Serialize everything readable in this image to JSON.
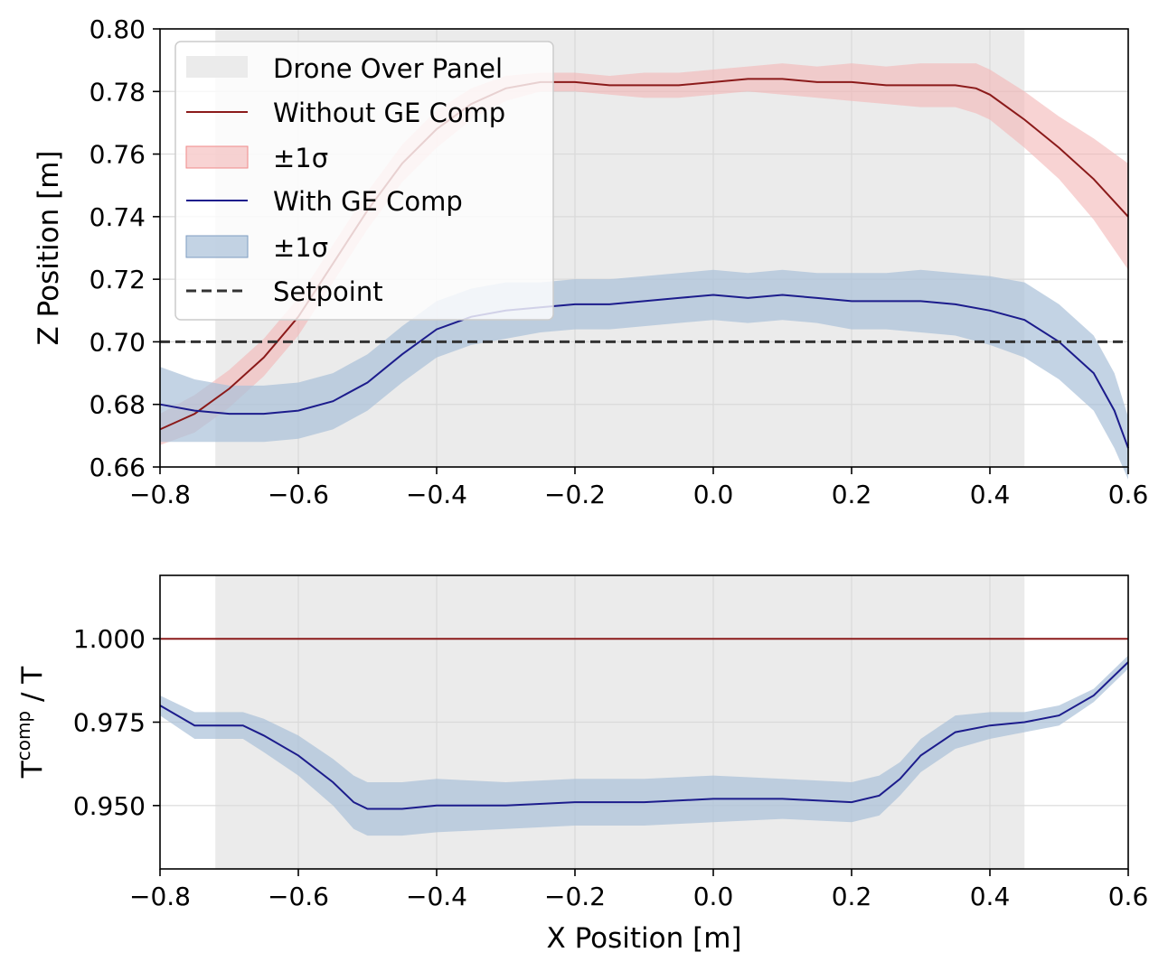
{
  "colors": {
    "panel_region": "#ebebeb",
    "without_line": "#8b1a1a",
    "without_band": "#f4b6b6",
    "with_line": "#1c1c8c",
    "with_band": "#a9c1d9",
    "setpoint": "#333333",
    "grid": "#d9d9d9"
  },
  "chart_data": [
    {
      "type": "line",
      "title": "",
      "xlabel": "",
      "ylabel": "Z Position [m]",
      "xlim": [
        -0.8,
        0.6
      ],
      "ylim": [
        0.66,
        0.8
      ],
      "xticks": [
        -0.8,
        -0.6,
        -0.4,
        -0.2,
        0.0,
        0.2,
        0.4,
        0.6
      ],
      "xtick_labels": [
        "−0.8",
        "−0.6",
        "−0.4",
        "−0.2",
        "0.0",
        "0.2",
        "0.4",
        "0.6"
      ],
      "yticks": [
        0.66,
        0.68,
        0.7,
        0.72,
        0.74,
        0.76,
        0.78,
        0.8
      ],
      "ytick_labels": [
        "0.66",
        "0.68",
        "0.70",
        "0.72",
        "0.74",
        "0.76",
        "0.78",
        "0.80"
      ],
      "grid": true,
      "legend_position": "top-left",
      "panel_region": {
        "label": "Drone Over Panel",
        "x_start": -0.72,
        "x_end": 0.45
      },
      "setpoint": {
        "label": "Setpoint",
        "y": 0.7
      },
      "series": [
        {
          "name": "Without GE Comp",
          "band_label": "±1σ",
          "x": [
            -0.8,
            -0.75,
            -0.7,
            -0.65,
            -0.6,
            -0.55,
            -0.5,
            -0.45,
            -0.4,
            -0.35,
            -0.3,
            -0.25,
            -0.2,
            -0.15,
            -0.1,
            -0.05,
            0.0,
            0.05,
            0.1,
            0.15,
            0.2,
            0.25,
            0.3,
            0.35,
            0.38,
            0.4,
            0.45,
            0.5,
            0.55,
            0.6
          ],
          "values": [
            0.672,
            0.677,
            0.685,
            0.695,
            0.708,
            0.725,
            0.742,
            0.757,
            0.768,
            0.776,
            0.781,
            0.783,
            0.783,
            0.782,
            0.782,
            0.782,
            0.783,
            0.784,
            0.784,
            0.783,
            0.783,
            0.782,
            0.782,
            0.782,
            0.781,
            0.779,
            0.771,
            0.762,
            0.752,
            0.74
          ],
          "std": [
            0.005,
            0.006,
            0.006,
            0.006,
            0.006,
            0.006,
            0.006,
            0.006,
            0.006,
            0.005,
            0.004,
            0.003,
            0.003,
            0.003,
            0.004,
            0.004,
            0.004,
            0.004,
            0.005,
            0.005,
            0.006,
            0.006,
            0.007,
            0.007,
            0.008,
            0.008,
            0.009,
            0.01,
            0.013,
            0.017
          ]
        },
        {
          "name": "With GE Comp",
          "band_label": "±1σ",
          "x": [
            -0.8,
            -0.75,
            -0.7,
            -0.65,
            -0.6,
            -0.55,
            -0.5,
            -0.45,
            -0.4,
            -0.35,
            -0.3,
            -0.25,
            -0.2,
            -0.15,
            -0.1,
            -0.05,
            0.0,
            0.05,
            0.1,
            0.15,
            0.2,
            0.25,
            0.3,
            0.35,
            0.4,
            0.45,
            0.5,
            0.55,
            0.58,
            0.6
          ],
          "values": [
            0.68,
            0.678,
            0.677,
            0.677,
            0.678,
            0.681,
            0.687,
            0.696,
            0.704,
            0.708,
            0.71,
            0.711,
            0.712,
            0.712,
            0.713,
            0.714,
            0.715,
            0.714,
            0.715,
            0.714,
            0.713,
            0.713,
            0.713,
            0.712,
            0.71,
            0.707,
            0.7,
            0.69,
            0.678,
            0.666
          ],
          "std": [
            0.012,
            0.01,
            0.009,
            0.009,
            0.009,
            0.009,
            0.009,
            0.009,
            0.009,
            0.009,
            0.009,
            0.008,
            0.008,
            0.008,
            0.008,
            0.008,
            0.008,
            0.008,
            0.008,
            0.008,
            0.009,
            0.009,
            0.01,
            0.01,
            0.011,
            0.012,
            0.012,
            0.012,
            0.012,
            0.01
          ]
        }
      ]
    },
    {
      "type": "line",
      "title": "",
      "xlabel": "X Position [m]",
      "ylabel_main": "T",
      "ylabel_superscript": "comp",
      "ylabel_tail": " / T",
      "xlim": [
        -0.8,
        0.6
      ],
      "ylim": [
        0.931,
        1.019
      ],
      "xticks": [
        -0.8,
        -0.6,
        -0.4,
        -0.2,
        0.0,
        0.2,
        0.4,
        0.6
      ],
      "xtick_labels": [
        "−0.8",
        "−0.6",
        "−0.4",
        "−0.2",
        "0.0",
        "0.2",
        "0.4",
        "0.6"
      ],
      "yticks": [
        0.95,
        0.975,
        1.0
      ],
      "ytick_labels": [
        "0.950",
        "0.975",
        "1.000"
      ],
      "grid": true,
      "panel_region": {
        "x_start": -0.72,
        "x_end": 0.45
      },
      "series": [
        {
          "name": "Without GE Comp",
          "x": [
            -0.8,
            0.6
          ],
          "values": [
            1.0,
            1.0
          ]
        },
        {
          "name": "With GE Comp",
          "x": [
            -0.8,
            -0.75,
            -0.72,
            -0.68,
            -0.65,
            -0.6,
            -0.55,
            -0.52,
            -0.5,
            -0.45,
            -0.4,
            -0.3,
            -0.2,
            -0.1,
            0.0,
            0.1,
            0.2,
            0.24,
            0.27,
            0.3,
            0.35,
            0.4,
            0.45,
            0.5,
            0.55,
            0.6
          ],
          "values": [
            0.98,
            0.974,
            0.974,
            0.974,
            0.971,
            0.965,
            0.957,
            0.951,
            0.949,
            0.949,
            0.95,
            0.95,
            0.951,
            0.951,
            0.952,
            0.952,
            0.951,
            0.953,
            0.958,
            0.965,
            0.972,
            0.974,
            0.975,
            0.977,
            0.983,
            0.993
          ],
          "std": [
            0.003,
            0.004,
            0.004,
            0.004,
            0.005,
            0.006,
            0.007,
            0.008,
            0.008,
            0.008,
            0.008,
            0.007,
            0.007,
            0.007,
            0.007,
            0.006,
            0.006,
            0.006,
            0.005,
            0.005,
            0.005,
            0.004,
            0.003,
            0.003,
            0.002,
            0.002
          ]
        }
      ]
    }
  ]
}
